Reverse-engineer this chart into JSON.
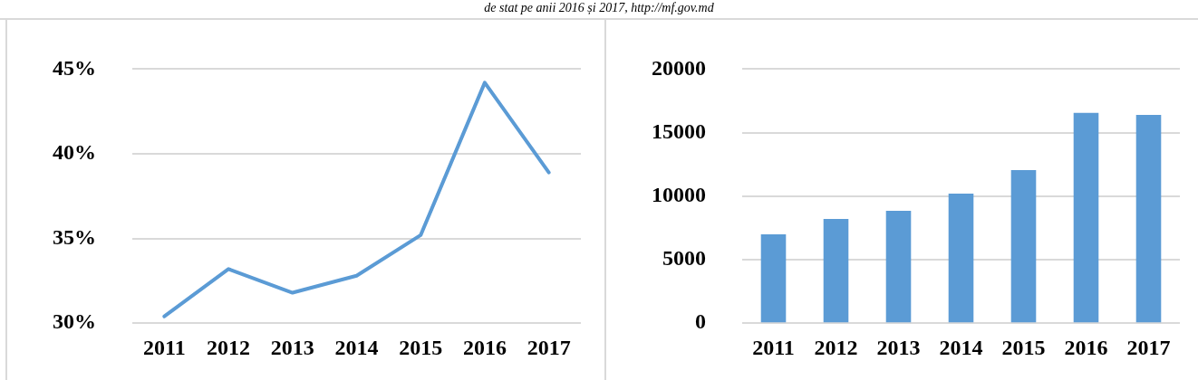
{
  "chart_data": [
    {
      "type": "line",
      "categories": [
        "2011",
        "2012",
        "2013",
        "2014",
        "2015",
        "2016",
        "2017"
      ],
      "series": [
        {
          "color": "#5b9bd5",
          "values": [
            30.4,
            33.2,
            31.8,
            32.8,
            35.2,
            44.2,
            38.9
          ]
        }
      ],
      "ylim": [
        30,
        45
      ],
      "yticks": [
        {
          "value": 30,
          "label": "30%"
        },
        {
          "value": 35,
          "label": "35%"
        },
        {
          "value": 40,
          "label": "40%"
        },
        {
          "value": 45,
          "label": "45%"
        }
      ],
      "grid": "y",
      "legend": false,
      "marker": "none",
      "line_style": "solid",
      "annotations": [
        "de stat pe anii 2016 și 2017, http://mf.gov.md"
      ]
    },
    {
      "type": "bar",
      "categories": [
        "2011",
        "2012",
        "2013",
        "2014",
        "2015",
        "2016",
        "2017"
      ],
      "series": [
        {
          "color": "#5b9bd5",
          "values": [
            7000,
            8200,
            8850,
            10200,
            12050,
            16560,
            16400
          ]
        }
      ],
      "ylim": [
        0,
        20000
      ],
      "yticks": [
        0,
        5000,
        10000,
        15000,
        20000
      ],
      "grid": "y",
      "legend": false
    }
  ]
}
